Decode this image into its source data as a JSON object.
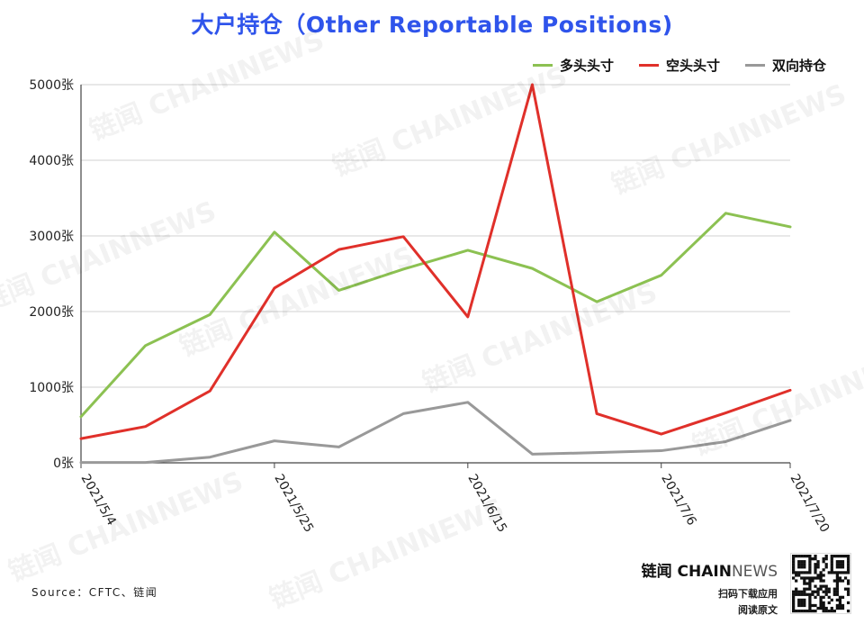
{
  "chart_data": {
    "type": "line",
    "title": "大户持仓（Other Reportable Positions)",
    "x": [
      "2021/5/4",
      "2021/5/11",
      "2021/5/18",
      "2021/5/25",
      "2021/6/1",
      "2021/6/8",
      "2021/6/15",
      "2021/6/22",
      "2021/6/29",
      "2021/7/6",
      "2021/7/13",
      "2021/7/20"
    ],
    "x_tick_labels": [
      "2021/5/4",
      "2021/5/25",
      "2021/6/15",
      "2021/7/6",
      "2021/7/20"
    ],
    "y_tick_labels": [
      "0张",
      "1000张",
      "2000张",
      "3000张",
      "4000张",
      "5000张"
    ],
    "y_ticks": [
      0,
      1000,
      2000,
      3000,
      4000,
      5000
    ],
    "ylim": [
      0,
      5000
    ],
    "grid": true,
    "legend_position": "top-right",
    "series": [
      {
        "name": "多头头寸",
        "color": "#8cc152",
        "values": [
          610,
          1550,
          1960,
          3050,
          2280,
          2560,
          2810,
          2570,
          2130,
          2480,
          3300,
          3120
        ]
      },
      {
        "name": "空头头寸",
        "color": "#e0302a",
        "values": [
          320,
          480,
          950,
          2310,
          2820,
          2990,
          1930,
          5000,
          650,
          380,
          660,
          960
        ]
      },
      {
        "name": "双向持仓",
        "color": "#999999",
        "values": [
          5,
          5,
          75,
          290,
          210,
          650,
          800,
          115,
          135,
          160,
          280,
          560
        ]
      }
    ]
  },
  "source": "Source：CFTC、链闻",
  "brand": {
    "name_cn": "链闻",
    "name_en": "CHAIN",
    "name_en2": "NEWS",
    "sub1": "扫码下载应用",
    "sub2": "阅读原文"
  },
  "watermark": "链闻 CHAINNEWS"
}
